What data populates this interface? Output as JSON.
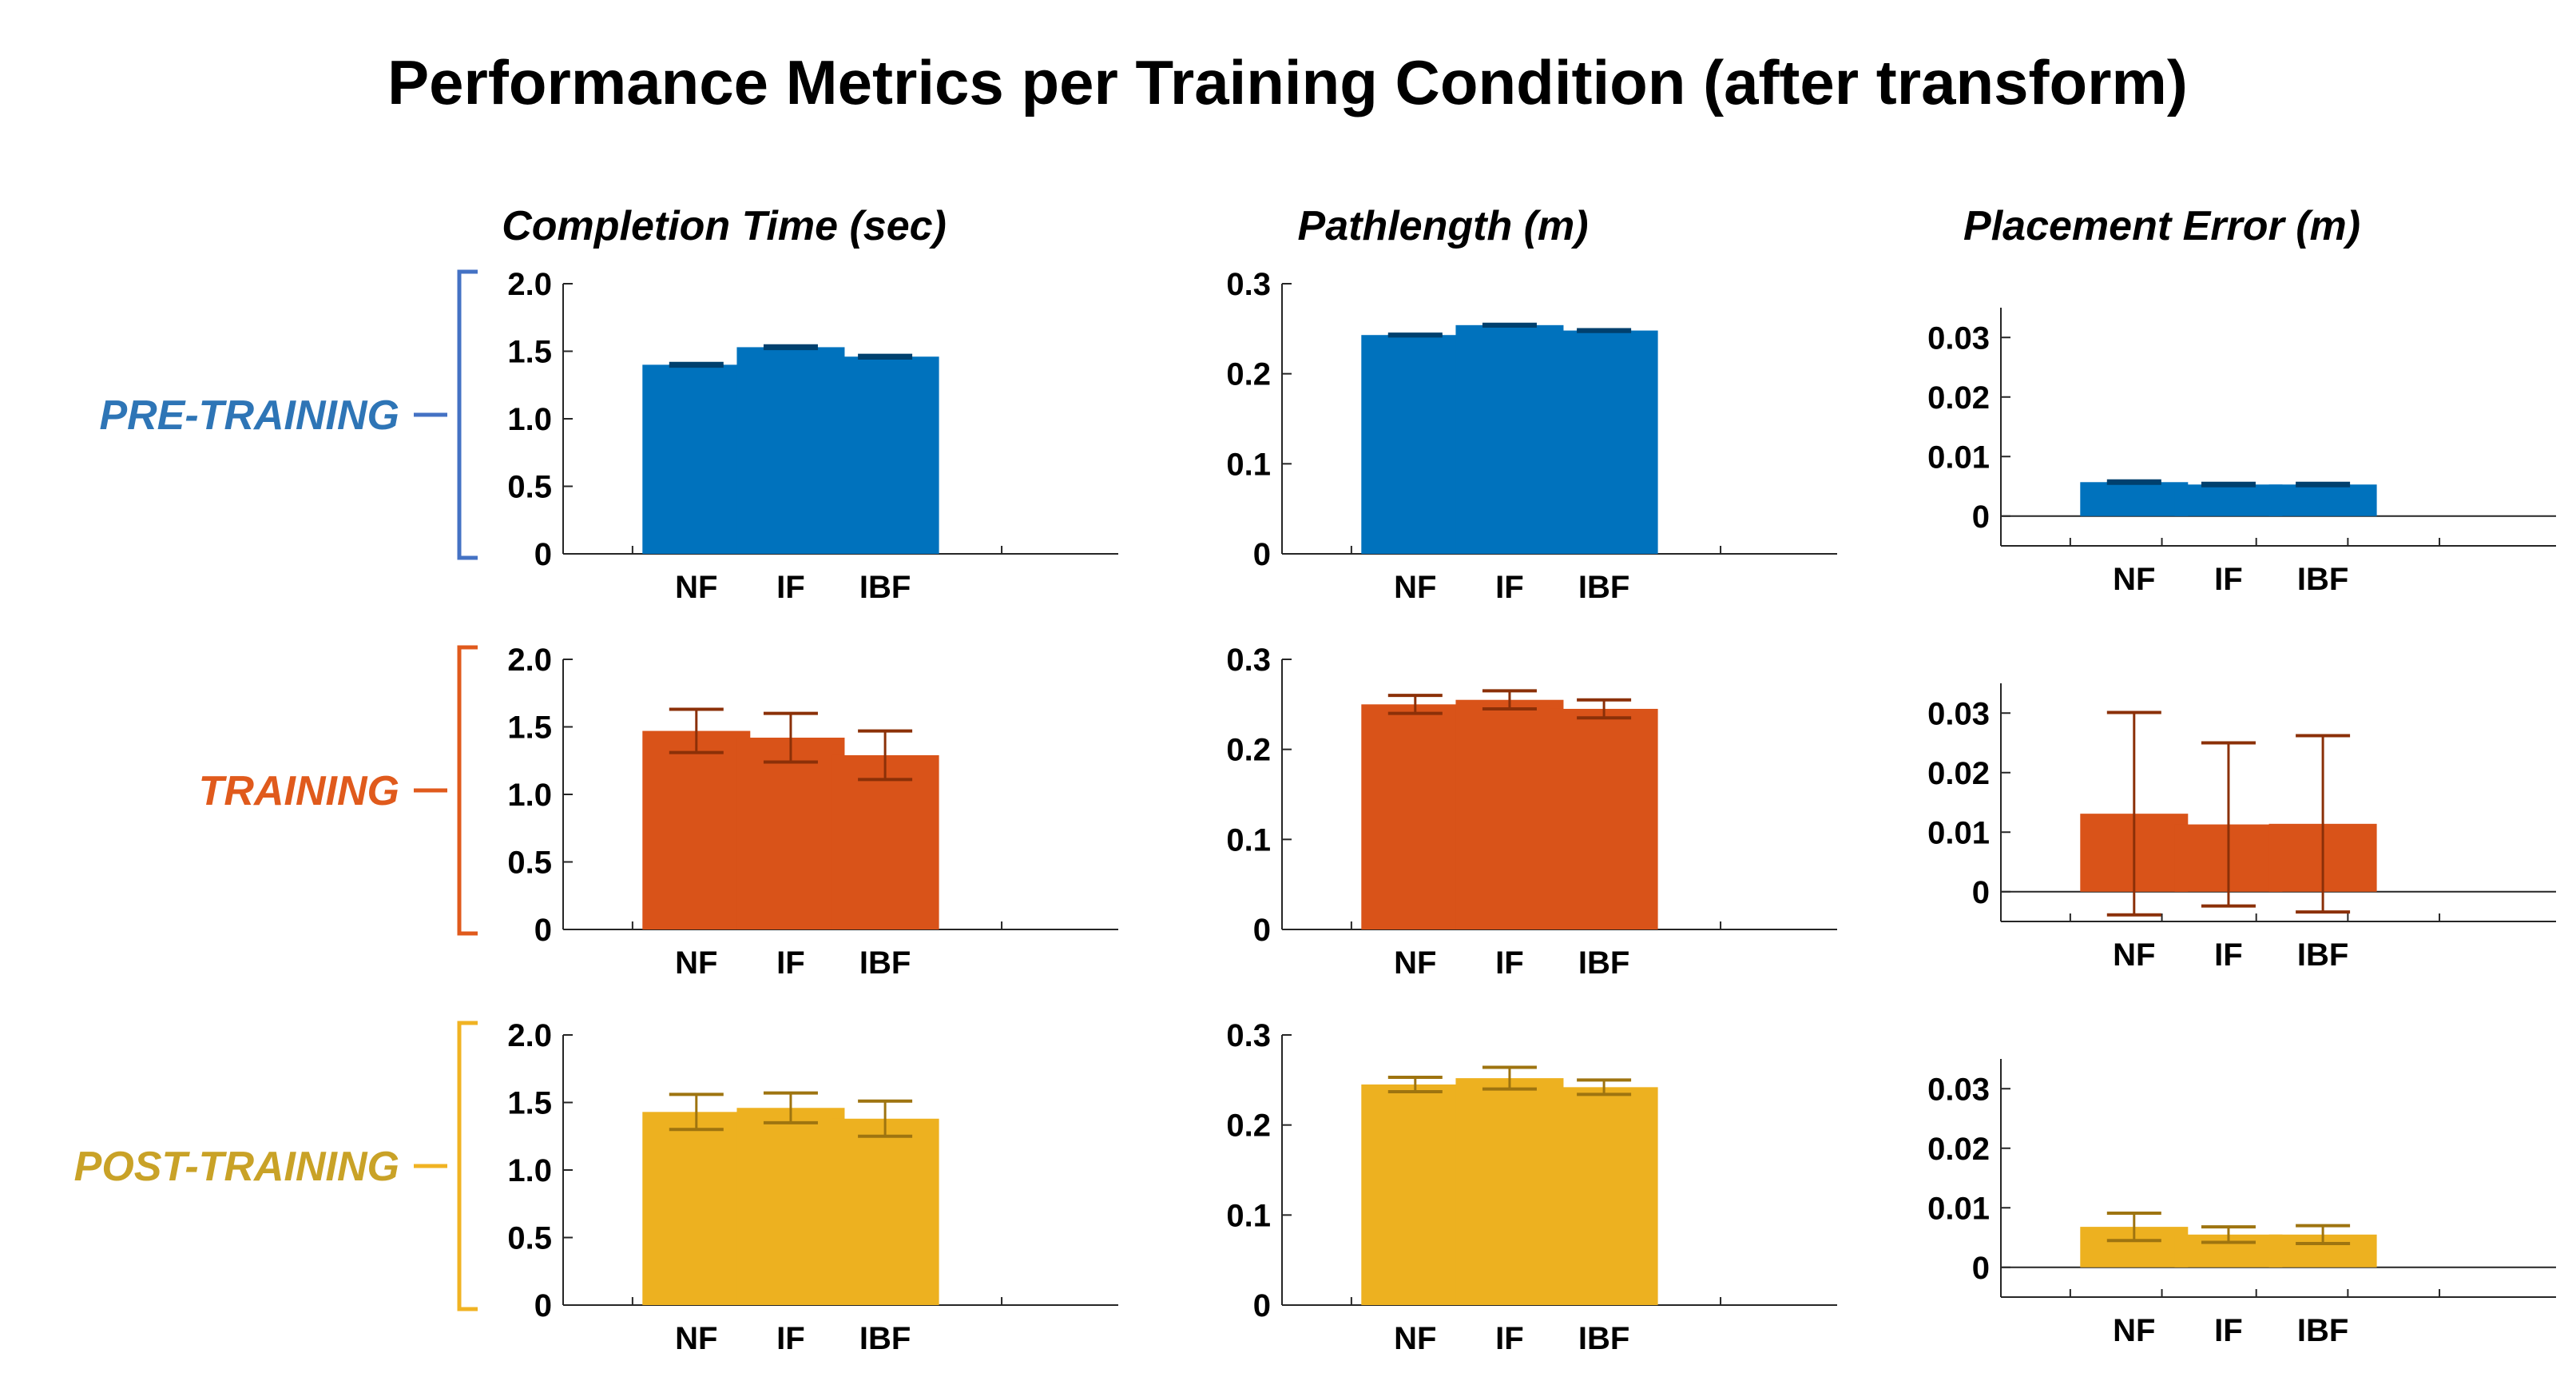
{
  "chart_data": {
    "type": "bar",
    "title": "Performance Metrics per Training Condition (after transform)",
    "categories": [
      "NF",
      "IF",
      "IBF"
    ],
    "columns": [
      {
        "key": "time",
        "title": "Completion Time (sec)",
        "ylim": [
          0,
          2.0
        ],
        "yticks": [
          0,
          0.5,
          1.0,
          1.5,
          2.0
        ],
        "ytick_labels": [
          "0",
          "0.5",
          "1.0",
          "1.5",
          "2.0"
        ]
      },
      {
        "key": "path",
        "title": "Pathlength (m)",
        "ylim": [
          0,
          0.3
        ],
        "yticks": [
          0,
          0.1,
          0.2,
          0.3
        ],
        "ytick_labels": [
          "0",
          "0.1",
          "0.2",
          "0.3"
        ]
      },
      {
        "key": "err",
        "title": "Placement Error (m)",
        "ylim": [
          -0.005,
          0.035
        ],
        "yticks": [
          0,
          0.01,
          0.02,
          0.03
        ],
        "ytick_labels": [
          "0",
          "0.01",
          "0.02",
          "0.03"
        ]
      }
    ],
    "rows": [
      {
        "label": "PRE-TRAINING",
        "color": "#0072BD",
        "label_color": "#2E75B6",
        "bracket_color": "#4472C4",
        "error_color": "#00406E",
        "series": {
          "time": {
            "values": [
              1.4,
              1.53,
              1.46
            ],
            "errors": [
              0.01,
              0.01,
              0.01
            ]
          },
          "path": {
            "values": [
              0.243,
              0.254,
              0.248
            ],
            "errors": [
              0.001,
              0.001,
              0.001
            ]
          },
          "err": {
            "values": [
              0.0057,
              0.0053,
              0.0053
            ],
            "errors": [
              0.0002,
              0.0002,
              0.0002
            ]
          }
        }
      },
      {
        "label": "TRAINING",
        "color": "#D95319",
        "label_color": "#E05A1C",
        "bracket_color": "#E05A1C",
        "error_color": "#8B3008",
        "series": {
          "time": {
            "values": [
              1.47,
              1.42,
              1.29
            ],
            "errors": [
              0.16,
              0.18,
              0.18
            ]
          },
          "path": {
            "values": [
              0.25,
              0.255,
              0.245
            ],
            "errors": [
              0.01,
              0.01,
              0.01
            ]
          },
          "err": {
            "values": [
              0.0131,
              0.0113,
              0.0114
            ],
            "errors": [
              0.017,
              0.0137,
              0.0148
            ]
          }
        }
      },
      {
        "label": "POST-TRAINING",
        "color": "#EDB120",
        "label_color": "#C9A227",
        "bracket_color": "#F0B323",
        "error_color": "#9E7410",
        "series": {
          "time": {
            "values": [
              1.43,
              1.46,
              1.38
            ],
            "errors": [
              0.13,
              0.11,
              0.13
            ]
          },
          "path": {
            "values": [
              0.245,
              0.252,
              0.242
            ],
            "errors": [
              0.008,
              0.012,
              0.008
            ]
          },
          "err": {
            "values": [
              0.0068,
              0.0055,
              0.0055
            ],
            "errors": [
              0.0023,
              0.0013,
              0.0015
            ]
          }
        }
      }
    ]
  }
}
